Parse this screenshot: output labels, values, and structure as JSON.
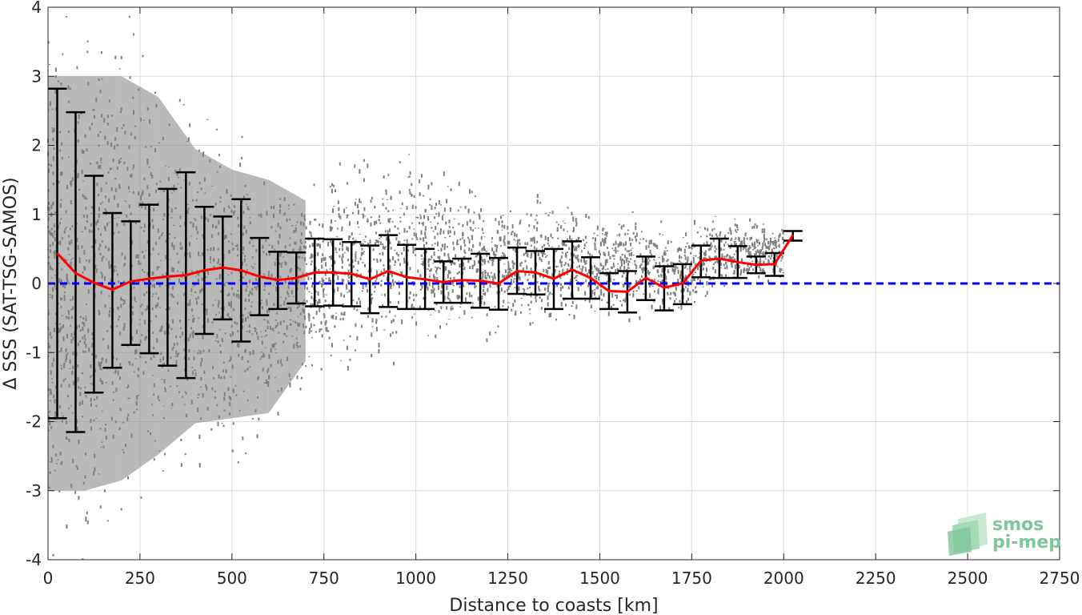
{
  "chart_data": {
    "type": "scatter",
    "title": "",
    "xlabel": "Distance to coasts [km]",
    "ylabel": "Δ SSS (SAT-TSG-SAMOS)",
    "xlim": [
      0,
      2750
    ],
    "ylim": [
      -4,
      4
    ],
    "xticks": [
      0,
      250,
      500,
      750,
      1000,
      1250,
      1500,
      1750,
      2000,
      2250,
      2500,
      2750
    ],
    "yticks": [
      -4,
      -3,
      -2,
      -1,
      0,
      1,
      2,
      3,
      4
    ],
    "grid": true,
    "legend": "none",
    "series": [
      {
        "kind": "scatter_cloud",
        "color": "#808080",
        "envelope": [
          {
            "x": 0,
            "lo": -4.0,
            "hi": 4.0
          },
          {
            "x": 100,
            "lo": -4.0,
            "hi": 4.0
          },
          {
            "x": 200,
            "lo": -3.8,
            "hi": 4.0
          },
          {
            "x": 300,
            "lo": -3.3,
            "hi": 3.6
          },
          {
            "x": 400,
            "lo": -2.7,
            "hi": 2.6
          },
          {
            "x": 500,
            "lo": -2.6,
            "hi": 2.2
          },
          {
            "x": 600,
            "lo": -2.5,
            "hi": 2.0
          },
          {
            "x": 700,
            "lo": -1.5,
            "hi": 1.6
          },
          {
            "x": 800,
            "lo": -1.3,
            "hi": 1.9
          },
          {
            "x": 900,
            "lo": -1.3,
            "hi": 2.0
          },
          {
            "x": 1000,
            "lo": -1.0,
            "hi": 2.1
          },
          {
            "x": 1100,
            "lo": -0.9,
            "hi": 1.6
          },
          {
            "x": 1200,
            "lo": -0.8,
            "hi": 1.4
          },
          {
            "x": 1300,
            "lo": -0.8,
            "hi": 1.3
          },
          {
            "x": 1400,
            "lo": -0.7,
            "hi": 1.3
          },
          {
            "x": 1500,
            "lo": -0.6,
            "hi": 1.2
          },
          {
            "x": 1600,
            "lo": -0.6,
            "hi": 1.1
          },
          {
            "x": 1700,
            "lo": -0.6,
            "hi": 0.9
          },
          {
            "x": 1800,
            "lo": -0.2,
            "hi": 1.0
          },
          {
            "x": 1900,
            "lo": 0.0,
            "hi": 1.0
          },
          {
            "x": 2000,
            "lo": 0.1,
            "hi": 0.9
          }
        ]
      },
      {
        "kind": "errorbar",
        "color": "#000000",
        "points": [
          {
            "x": 25,
            "lo": -1.95,
            "hi": 2.82
          },
          {
            "x": 75,
            "lo": -2.15,
            "hi": 2.48
          },
          {
            "x": 125,
            "lo": -1.58,
            "hi": 1.56
          },
          {
            "x": 175,
            "lo": -1.22,
            "hi": 1.02
          },
          {
            "x": 225,
            "lo": -0.89,
            "hi": 0.9
          },
          {
            "x": 275,
            "lo": -1.01,
            "hi": 1.14
          },
          {
            "x": 325,
            "lo": -1.19,
            "hi": 1.37
          },
          {
            "x": 375,
            "lo": -1.37,
            "hi": 1.61
          },
          {
            "x": 425,
            "lo": -0.73,
            "hi": 1.11
          },
          {
            "x": 475,
            "lo": -0.52,
            "hi": 0.97
          },
          {
            "x": 525,
            "lo": -0.84,
            "hi": 1.22
          },
          {
            "x": 575,
            "lo": -0.46,
            "hi": 0.66
          },
          {
            "x": 625,
            "lo": -0.37,
            "hi": 0.46
          },
          {
            "x": 675,
            "lo": -0.29,
            "hi": 0.45
          },
          {
            "x": 725,
            "lo": -0.33,
            "hi": 0.65
          },
          {
            "x": 775,
            "lo": -0.32,
            "hi": 0.64
          },
          {
            "x": 825,
            "lo": -0.33,
            "hi": 0.6
          },
          {
            "x": 875,
            "lo": -0.43,
            "hi": 0.55
          },
          {
            "x": 925,
            "lo": -0.34,
            "hi": 0.7
          },
          {
            "x": 975,
            "lo": -0.37,
            "hi": 0.56
          },
          {
            "x": 1025,
            "lo": -0.37,
            "hi": 0.5
          },
          {
            "x": 1075,
            "lo": -0.28,
            "hi": 0.32
          },
          {
            "x": 1125,
            "lo": -0.28,
            "hi": 0.36
          },
          {
            "x": 1175,
            "lo": -0.35,
            "hi": 0.43
          },
          {
            "x": 1225,
            "lo": -0.38,
            "hi": 0.37
          },
          {
            "x": 1275,
            "lo": -0.15,
            "hi": 0.52
          },
          {
            "x": 1325,
            "lo": -0.16,
            "hi": 0.47
          },
          {
            "x": 1375,
            "lo": -0.37,
            "hi": 0.5
          },
          {
            "x": 1425,
            "lo": -0.22,
            "hi": 0.61
          },
          {
            "x": 1475,
            "lo": -0.22,
            "hi": 0.38
          },
          {
            "x": 1525,
            "lo": -0.37,
            "hi": 0.15
          },
          {
            "x": 1575,
            "lo": -0.42,
            "hi": 0.18
          },
          {
            "x": 1625,
            "lo": -0.24,
            "hi": 0.39
          },
          {
            "x": 1675,
            "lo": -0.39,
            "hi": 0.25
          },
          {
            "x": 1725,
            "lo": -0.3,
            "hi": 0.28
          },
          {
            "x": 1775,
            "lo": 0.09,
            "hi": 0.55
          },
          {
            "x": 1825,
            "lo": 0.08,
            "hi": 0.65
          },
          {
            "x": 1875,
            "lo": 0.08,
            "hi": 0.54
          },
          {
            "x": 1925,
            "lo": 0.15,
            "hi": 0.39
          },
          {
            "x": 1975,
            "lo": 0.11,
            "hi": 0.44
          },
          {
            "x": 2025,
            "lo": 0.62,
            "hi": 0.76
          }
        ]
      },
      {
        "kind": "line",
        "color": "#ff0000",
        "x": [
          25,
          75,
          125,
          175,
          225,
          275,
          325,
          375,
          425,
          475,
          525,
          575,
          625,
          675,
          725,
          775,
          825,
          875,
          925,
          975,
          1025,
          1075,
          1125,
          1175,
          1225,
          1275,
          1325,
          1375,
          1425,
          1475,
          1525,
          1575,
          1625,
          1675,
          1725,
          1775,
          1825,
          1875,
          1925,
          1975,
          2025
        ],
        "y": [
          0.44,
          0.15,
          0.01,
          -0.09,
          0.03,
          0.07,
          0.1,
          0.12,
          0.19,
          0.23,
          0.19,
          0.1,
          0.05,
          0.08,
          0.16,
          0.16,
          0.14,
          0.06,
          0.18,
          0.09,
          0.06,
          0.02,
          0.05,
          0.04,
          0.0,
          0.18,
          0.16,
          0.07,
          0.2,
          0.08,
          -0.11,
          -0.12,
          0.08,
          -0.06,
          0.0,
          0.33,
          0.36,
          0.31,
          0.27,
          0.28,
          0.7
        ]
      },
      {
        "kind": "reference_line",
        "color": "#0000ff",
        "style": "dashed",
        "y": 0
      }
    ]
  },
  "logo": {
    "line1": "smos",
    "line2": "pi-mep"
  }
}
